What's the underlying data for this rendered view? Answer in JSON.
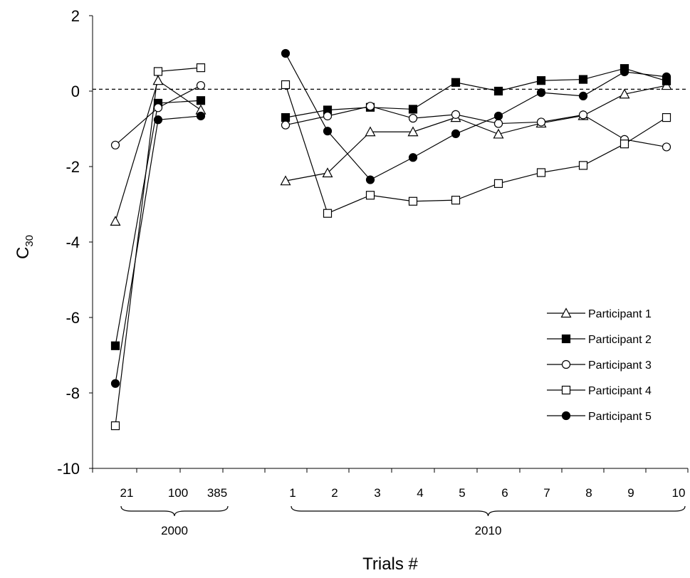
{
  "chart_data": {
    "type": "line",
    "title": "",
    "xlabel": "Trials #",
    "ylabel": "C30",
    "ylabel_main": "C",
    "ylabel_sub": "30",
    "ylim": [
      -10,
      2
    ],
    "yticks": [
      2,
      0,
      -2,
      -4,
      -6,
      -8,
      -10
    ],
    "reference_line": {
      "y": 0.05,
      "style": "dashed"
    },
    "groups": [
      {
        "label": "2000",
        "ticks": [
          "21",
          "100",
          "385"
        ]
      },
      {
        "label": "2010",
        "ticks": [
          "1",
          "2",
          "3",
          "4",
          "5",
          "6",
          "7",
          "8",
          "9",
          "10"
        ]
      }
    ],
    "legend_position": "bottom-right",
    "series": [
      {
        "name": "Participant 1",
        "marker": "triangle-open",
        "segments": [
          [
            -3.45,
            0.28,
            -0.5
          ],
          [
            -2.38,
            -2.17,
            -1.08,
            -1.08,
            -0.7,
            -1.14,
            -0.85,
            -0.65,
            -0.08,
            0.15
          ]
        ]
      },
      {
        "name": "Participant 2",
        "marker": "square-filled",
        "segments": [
          [
            -6.75,
            -0.32,
            -0.25
          ],
          [
            -0.7,
            -0.5,
            -0.43,
            -0.48,
            0.23,
            0.0,
            0.28,
            0.31,
            0.6,
            0.27
          ]
        ]
      },
      {
        "name": "Participant 3",
        "marker": "circle-open",
        "segments": [
          [
            -1.43,
            -0.44,
            0.15
          ],
          [
            -0.9,
            -0.66,
            -0.4,
            -0.72,
            -0.62,
            -0.86,
            -0.82,
            -0.63,
            -1.28,
            -1.48
          ]
        ]
      },
      {
        "name": "Participant 4",
        "marker": "square-open",
        "segments": [
          [
            -8.87,
            0.52,
            0.62
          ],
          [
            0.17,
            -3.24,
            -2.76,
            -2.92,
            -2.89,
            -2.45,
            -2.16,
            -1.97,
            -1.4,
            -0.7
          ]
        ]
      },
      {
        "name": "Participant 5",
        "marker": "circle-filled",
        "segments": [
          [
            -7.75,
            -0.76,
            -0.66
          ],
          [
            1.0,
            -1.06,
            -2.35,
            -1.76,
            -1.13,
            -0.66,
            -0.04,
            -0.13,
            0.51,
            0.38
          ]
        ]
      }
    ]
  }
}
